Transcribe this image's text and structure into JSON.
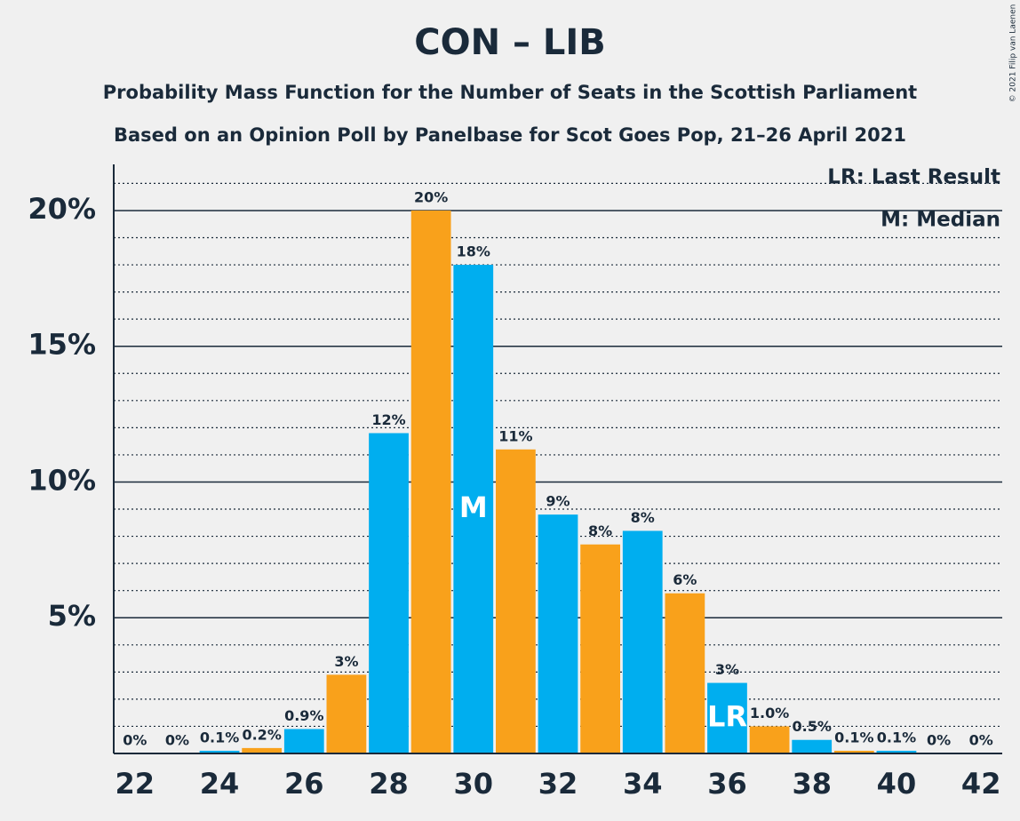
{
  "chart_data": {
    "type": "bar",
    "title": "CON – LIB",
    "subtitle": "Probability Mass Function for the Number of Seats in the Scottish Parliament",
    "subtitle2": "Based on an Opinion Poll by Panelbase for Scot Goes Pop, 21–26 April 2021",
    "copyright": "© 2021 Filip van Laenen",
    "x": [
      22,
      23,
      24,
      25,
      26,
      27,
      28,
      29,
      30,
      31,
      32,
      33,
      34,
      35,
      36,
      37,
      38,
      39,
      40,
      41,
      42
    ],
    "values": [
      0,
      0,
      0.1,
      0.2,
      0.9,
      2.9,
      11.8,
      20,
      18,
      11.2,
      8.8,
      7.7,
      8.2,
      5.9,
      2.6,
      1.0,
      0.5,
      0.1,
      0.1,
      0,
      0
    ],
    "value_labels": [
      "0%",
      "0%",
      "0.1%",
      "0.2%",
      "0.9%",
      "3%",
      "12%",
      "20%",
      "18%",
      "11%",
      "9%",
      "8%",
      "8%",
      "6%",
      "3%",
      "1.0%",
      "0.5%",
      "0.1%",
      "0.1%",
      "0%",
      "0%"
    ],
    "colors": [
      "#00aeef",
      "#f9a11b"
    ],
    "xlim": [
      21.5,
      42.5
    ],
    "xticks": [
      22,
      24,
      26,
      28,
      30,
      32,
      34,
      36,
      38,
      40,
      42
    ],
    "ylim": [
      0,
      21.7
    ],
    "yticks": [
      {
        "value": 5,
        "label": "5%"
      },
      {
        "value": 10,
        "label": "10%"
      },
      {
        "value": 15,
        "label": "15%"
      },
      {
        "value": 20,
        "label": "20%"
      }
    ],
    "minor_yticks": [
      1,
      2,
      3,
      4,
      6,
      7,
      8,
      9,
      11,
      12,
      13,
      14,
      16,
      17,
      18,
      19,
      21
    ],
    "grid": true,
    "annotations": [
      {
        "x": 30,
        "text": "M"
      },
      {
        "x": 36,
        "text": "LR"
      }
    ],
    "legend": [
      "LR: Last Result",
      "M: Median"
    ]
  }
}
